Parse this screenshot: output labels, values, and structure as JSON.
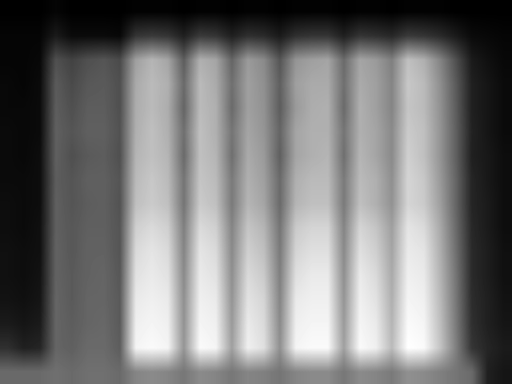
{
  "chart_data": {
    "type": "heatmap",
    "color": "gray",
    "tick_labels": false,
    "cells": [
      [
        0,
        0,
        0,
        2,
        0,
        0,
        0,
        0,
        1,
        1,
        1,
        0,
        1,
        1,
        0,
        1,
        1,
        0,
        1,
        1,
        1,
        0,
        1,
        1,
        0,
        1,
        1,
        1,
        0,
        0,
        0,
        0
      ],
      [
        2,
        2,
        2,
        10,
        4,
        4,
        4,
        3,
        20,
        22,
        20,
        12,
        22,
        20,
        12,
        18,
        16,
        10,
        18,
        20,
        20,
        12,
        20,
        18,
        15,
        22,
        20,
        16,
        10,
        4,
        3,
        2
      ],
      [
        2,
        2,
        3,
        30,
        25,
        30,
        32,
        28,
        60,
        68,
        62,
        35,
        66,
        62,
        38,
        58,
        52,
        32,
        56,
        60,
        62,
        40,
        62,
        58,
        48,
        72,
        66,
        50,
        30,
        10,
        6,
        3
      ],
      [
        3,
        2,
        4,
        34,
        28,
        33,
        34,
        30,
        64,
        70,
        66,
        40,
        70,
        64,
        42,
        60,
        54,
        36,
        60,
        64,
        64,
        42,
        64,
        60,
        50,
        75,
        70,
        54,
        34,
        12,
        8,
        4
      ],
      [
        3,
        3,
        4,
        35,
        30,
        35,
        35,
        30,
        65,
        70,
        65,
        38,
        70,
        66,
        40,
        60,
        55,
        35,
        58,
        65,
        66,
        40,
        66,
        60,
        50,
        74,
        70,
        55,
        35,
        12,
        8,
        4
      ],
      [
        4,
        3,
        4,
        36,
        32,
        36,
        36,
        31,
        66,
        72,
        66,
        42,
        72,
        66,
        44,
        62,
        56,
        38,
        62,
        66,
        66,
        44,
        66,
        62,
        52,
        76,
        72,
        56,
        36,
        13,
        8,
        4
      ],
      [
        4,
        3,
        5,
        36,
        30,
        34,
        35,
        30,
        68,
        72,
        68,
        40,
        72,
        68,
        42,
        64,
        58,
        36,
        62,
        66,
        68,
        42,
        68,
        62,
        52,
        78,
        72,
        56,
        36,
        12,
        9,
        5
      ],
      [
        4,
        4,
        5,
        35,
        32,
        36,
        36,
        32,
        70,
        75,
        70,
        44,
        74,
        70,
        46,
        66,
        60,
        40,
        66,
        70,
        70,
        46,
        70,
        66,
        54,
        80,
        75,
        58,
        38,
        14,
        9,
        5
      ],
      [
        5,
        4,
        5,
        36,
        32,
        35,
        36,
        31,
        72,
        76,
        72,
        44,
        76,
        72,
        46,
        68,
        62,
        40,
        68,
        72,
        72,
        46,
        72,
        66,
        55,
        80,
        76,
        60,
        38,
        14,
        10,
        5
      ],
      [
        5,
        4,
        6,
        36,
        33,
        36,
        36,
        32,
        78,
        82,
        78,
        48,
        82,
        78,
        50,
        74,
        68,
        44,
        76,
        80,
        80,
        50,
        80,
        74,
        60,
        86,
        82,
        64,
        40,
        15,
        10,
        5
      ],
      [
        6,
        5,
        6,
        37,
        33,
        37,
        37,
        32,
        82,
        86,
        82,
        50,
        86,
        82,
        52,
        78,
        72,
        46,
        80,
        84,
        84,
        52,
        84,
        78,
        62,
        88,
        86,
        66,
        42,
        16,
        11,
        6
      ],
      [
        6,
        5,
        7,
        37,
        34,
        37,
        38,
        33,
        85,
        88,
        85,
        52,
        88,
        85,
        54,
        82,
        76,
        48,
        84,
        88,
        88,
        54,
        88,
        82,
        64,
        90,
        88,
        68,
        44,
        16,
        11,
        6
      ],
      [
        7,
        6,
        8,
        38,
        34,
        38,
        38,
        34,
        88,
        90,
        88,
        54,
        90,
        88,
        56,
        85,
        80,
        50,
        88,
        90,
        90,
        56,
        90,
        85,
        66,
        92,
        90,
        70,
        45,
        17,
        12,
        7
      ],
      [
        10,
        8,
        10,
        38,
        35,
        38,
        39,
        34,
        90,
        92,
        90,
        55,
        92,
        90,
        58,
        88,
        82,
        52,
        90,
        92,
        92,
        58,
        92,
        88,
        68,
        94,
        92,
        72,
        46,
        18,
        12,
        8
      ],
      [
        18,
        12,
        14,
        38,
        36,
        40,
        40,
        35,
        92,
        94,
        92,
        56,
        94,
        92,
        60,
        90,
        84,
        54,
        92,
        94,
        94,
        60,
        94,
        90,
        70,
        96,
        94,
        74,
        48,
        20,
        14,
        10
      ],
      [
        40,
        40,
        40,
        42,
        40,
        42,
        42,
        40,
        50,
        52,
        50,
        45,
        52,
        50,
        45,
        50,
        48,
        44,
        50,
        52,
        52,
        45,
        52,
        50,
        46,
        54,
        52,
        48,
        44,
        40,
        12,
        8
      ]
    ]
  }
}
